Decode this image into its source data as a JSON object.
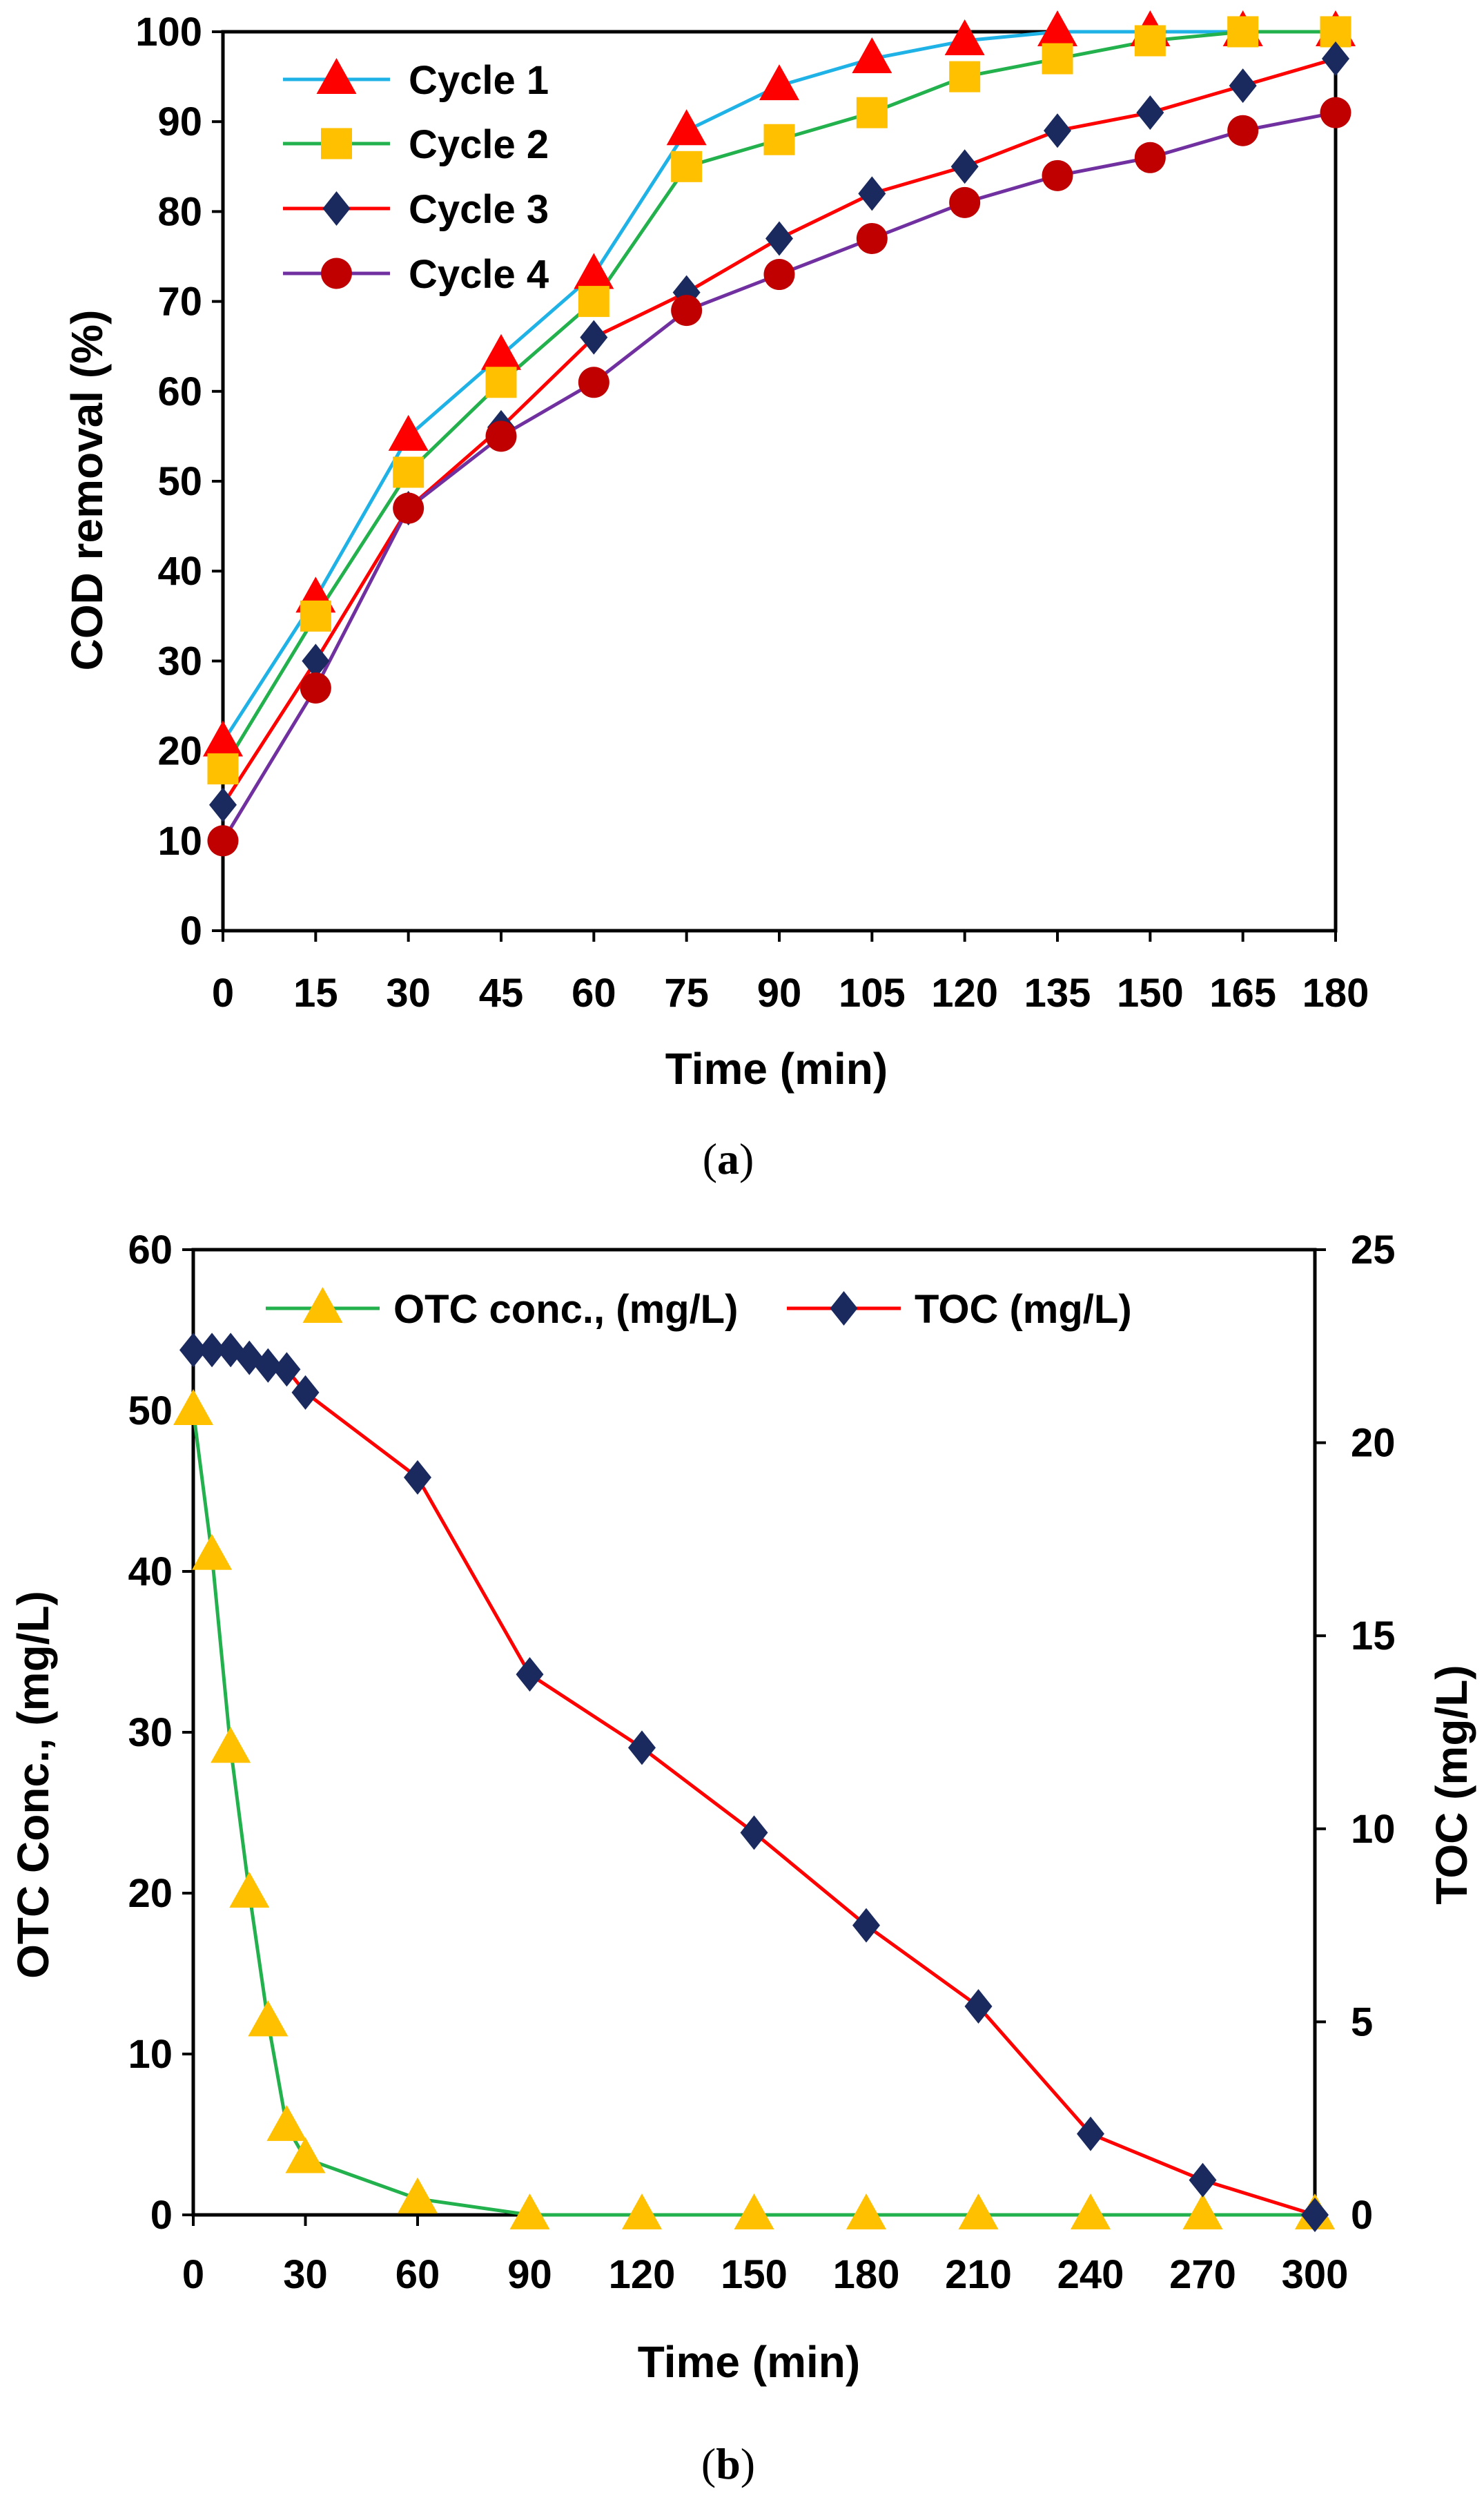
{
  "chart_data": [
    {
      "type": "line",
      "panel": "a",
      "caption_open": "(",
      "caption_letter": "a",
      "caption_close": ")",
      "xlabel": "Time (min)",
      "ylabel": "COD removal (%)",
      "x": [
        0,
        15,
        30,
        45,
        60,
        75,
        90,
        105,
        120,
        135,
        150,
        165,
        180
      ],
      "xlim": [
        0,
        180
      ],
      "ylim": [
        0,
        100
      ],
      "xticks": [
        0,
        15,
        30,
        45,
        60,
        75,
        90,
        105,
        120,
        135,
        150,
        165,
        180
      ],
      "yticks": [
        0,
        10,
        20,
        30,
        40,
        50,
        60,
        70,
        80,
        90,
        100
      ],
      "legend": "top-left",
      "series": [
        {
          "name": "Cycle 1",
          "line_color": "#1fb2e6",
          "marker": "triangle",
          "marker_color": "#ff0000",
          "values": [
            21,
            37,
            55,
            64,
            73,
            89,
            94,
            97,
            99,
            100,
            100,
            100,
            100
          ]
        },
        {
          "name": "Cycle 2",
          "line_color": "#22b14c",
          "marker": "square",
          "marker_color": "#ffc000",
          "values": [
            18,
            35,
            51,
            61,
            70,
            85,
            88,
            91,
            95,
            97,
            99,
            100,
            100
          ]
        },
        {
          "name": "Cycle 3",
          "line_color": "#ff0000",
          "marker": "diamond",
          "marker_color": "#1b2a5e",
          "values": [
            14,
            30,
            47,
            56,
            66,
            71,
            77,
            82,
            85,
            89,
            91,
            94,
            97
          ]
        },
        {
          "name": "Cycle 4",
          "line_color": "#7030a0",
          "marker": "circle",
          "marker_color": "#c00000",
          "values": [
            10,
            27,
            47,
            55,
            61,
            69,
            73,
            77,
            81,
            84,
            86,
            89,
            91
          ]
        }
      ]
    },
    {
      "type": "line",
      "panel": "b",
      "caption_open": "(",
      "caption_letter": "b",
      "caption_close": ")",
      "xlabel": "Time (min)",
      "ylabel": "OTC Conc., (mg/L)",
      "y2label": "TOC (mg/L)",
      "xlim": [
        0,
        300
      ],
      "ylim": [
        0,
        60
      ],
      "y2lim": [
        0,
        25
      ],
      "xticks": [
        0,
        30,
        60,
        90,
        120,
        150,
        180,
        210,
        240,
        270,
        300
      ],
      "yticks": [
        0,
        10,
        20,
        30,
        40,
        50,
        60
      ],
      "y2ticks": [
        0,
        5,
        10,
        15,
        20,
        25
      ],
      "legend": "top-center",
      "series": [
        {
          "name": "OTC conc., (mg/L)",
          "axis": "left",
          "line_color": "#22b14c",
          "marker": "triangle",
          "marker_color": "#ffc000",
          "x": [
            0,
            5,
            10,
            15,
            20,
            25,
            30,
            60,
            90,
            120,
            150,
            180,
            210,
            240,
            270,
            300
          ],
          "values": [
            50,
            41,
            29,
            20,
            12,
            5.5,
            3.5,
            1,
            0,
            0,
            0,
            0,
            0,
            0,
            0,
            0
          ]
        },
        {
          "name": "TOC (mg/L)",
          "axis": "right",
          "line_color": "#ff0000",
          "marker": "diamond",
          "marker_color": "#1b2a5e",
          "x": [
            0,
            5,
            10,
            15,
            20,
            25,
            30,
            60,
            90,
            120,
            150,
            180,
            210,
            240,
            270,
            300
          ],
          "values": [
            22.4,
            22.4,
            22.4,
            22.2,
            22.0,
            21.9,
            21.3,
            19.1,
            14.0,
            12.1,
            9.9,
            7.5,
            5.4,
            2.1,
            0.9,
            0
          ]
        }
      ]
    }
  ]
}
